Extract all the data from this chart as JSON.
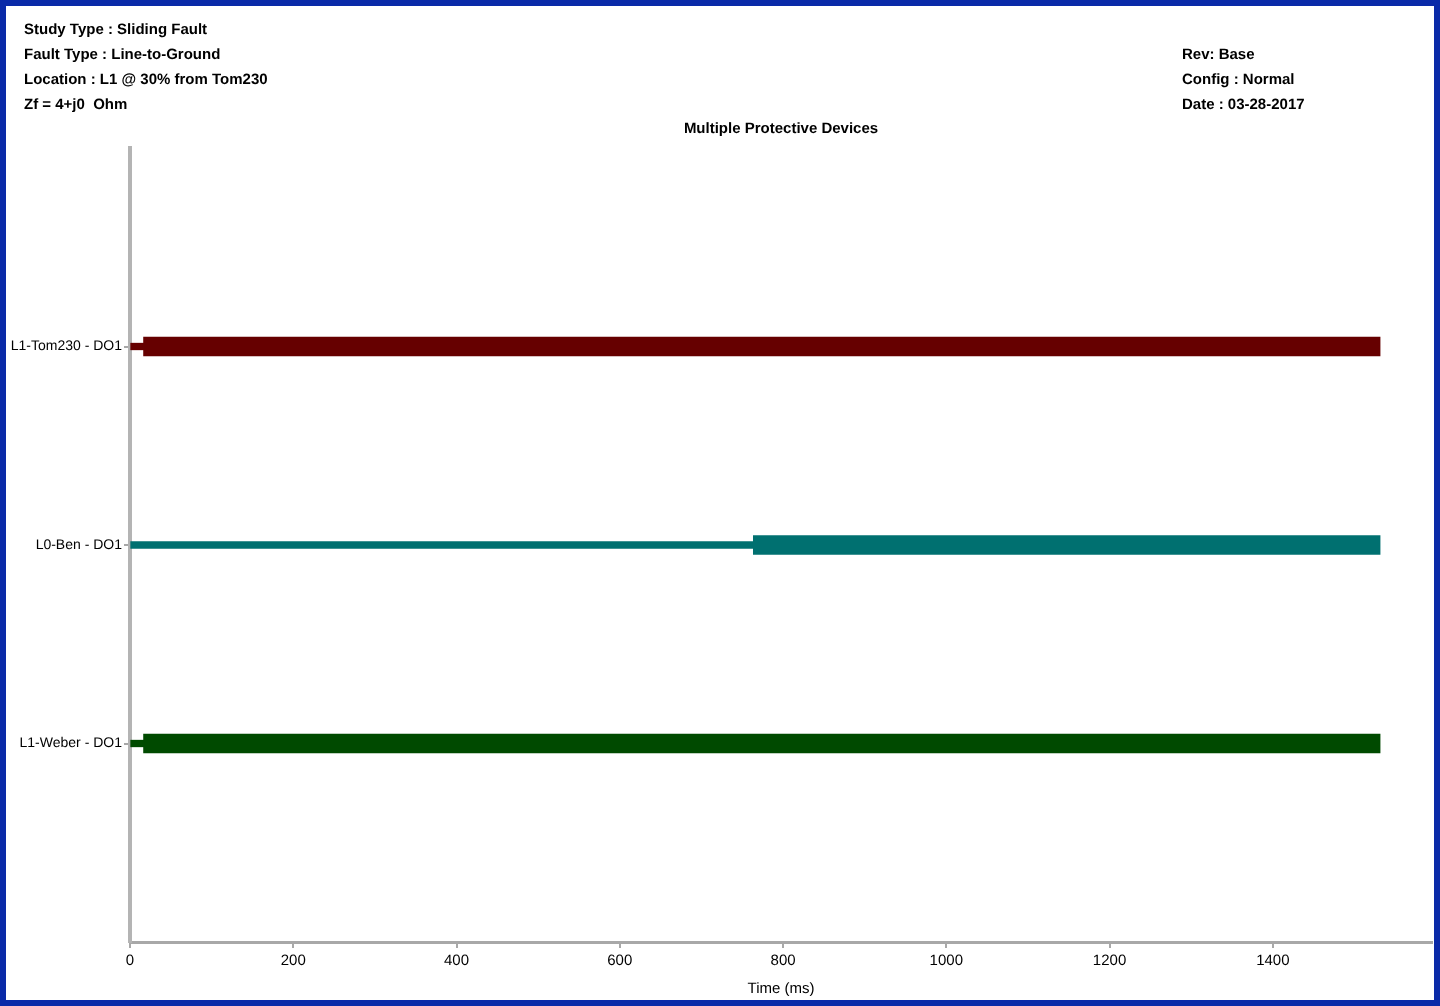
{
  "chart_data": {
    "type": "bar",
    "orientation": "horizontal",
    "stacked": true,
    "title": "Multiple Protective Devices",
    "xlabel": "Time (ms)",
    "annotations": [
      "Study Type : Sliding Fault",
      "Fault Type : Line-to-Ground",
      "Location : L1 @ 30% from Tom230",
      "Zf = 4+j0  Ohm",
      "Rev: Base",
      "Config : Normal",
      "Date : 03-28-2017"
    ],
    "categories": [
      "L1-Tom230 - DO1",
      "L0-Ben - DO1",
      "L1-Weber - DO1"
    ],
    "series": [
      {
        "colors": [
          "#660000",
          "#007070",
          "#004a00"
        ],
        "values": [
          17,
          764,
          17
        ]
      },
      {
        "colors": [
          "#660000",
          "#007070",
          "#004a00"
        ],
        "values": [
          1514,
          767,
          1514
        ]
      }
    ],
    "xlim": [
      0,
      1595
    ],
    "xticks": [
      0,
      200,
      400,
      600,
      800,
      1000,
      1200,
      1400
    ]
  }
}
